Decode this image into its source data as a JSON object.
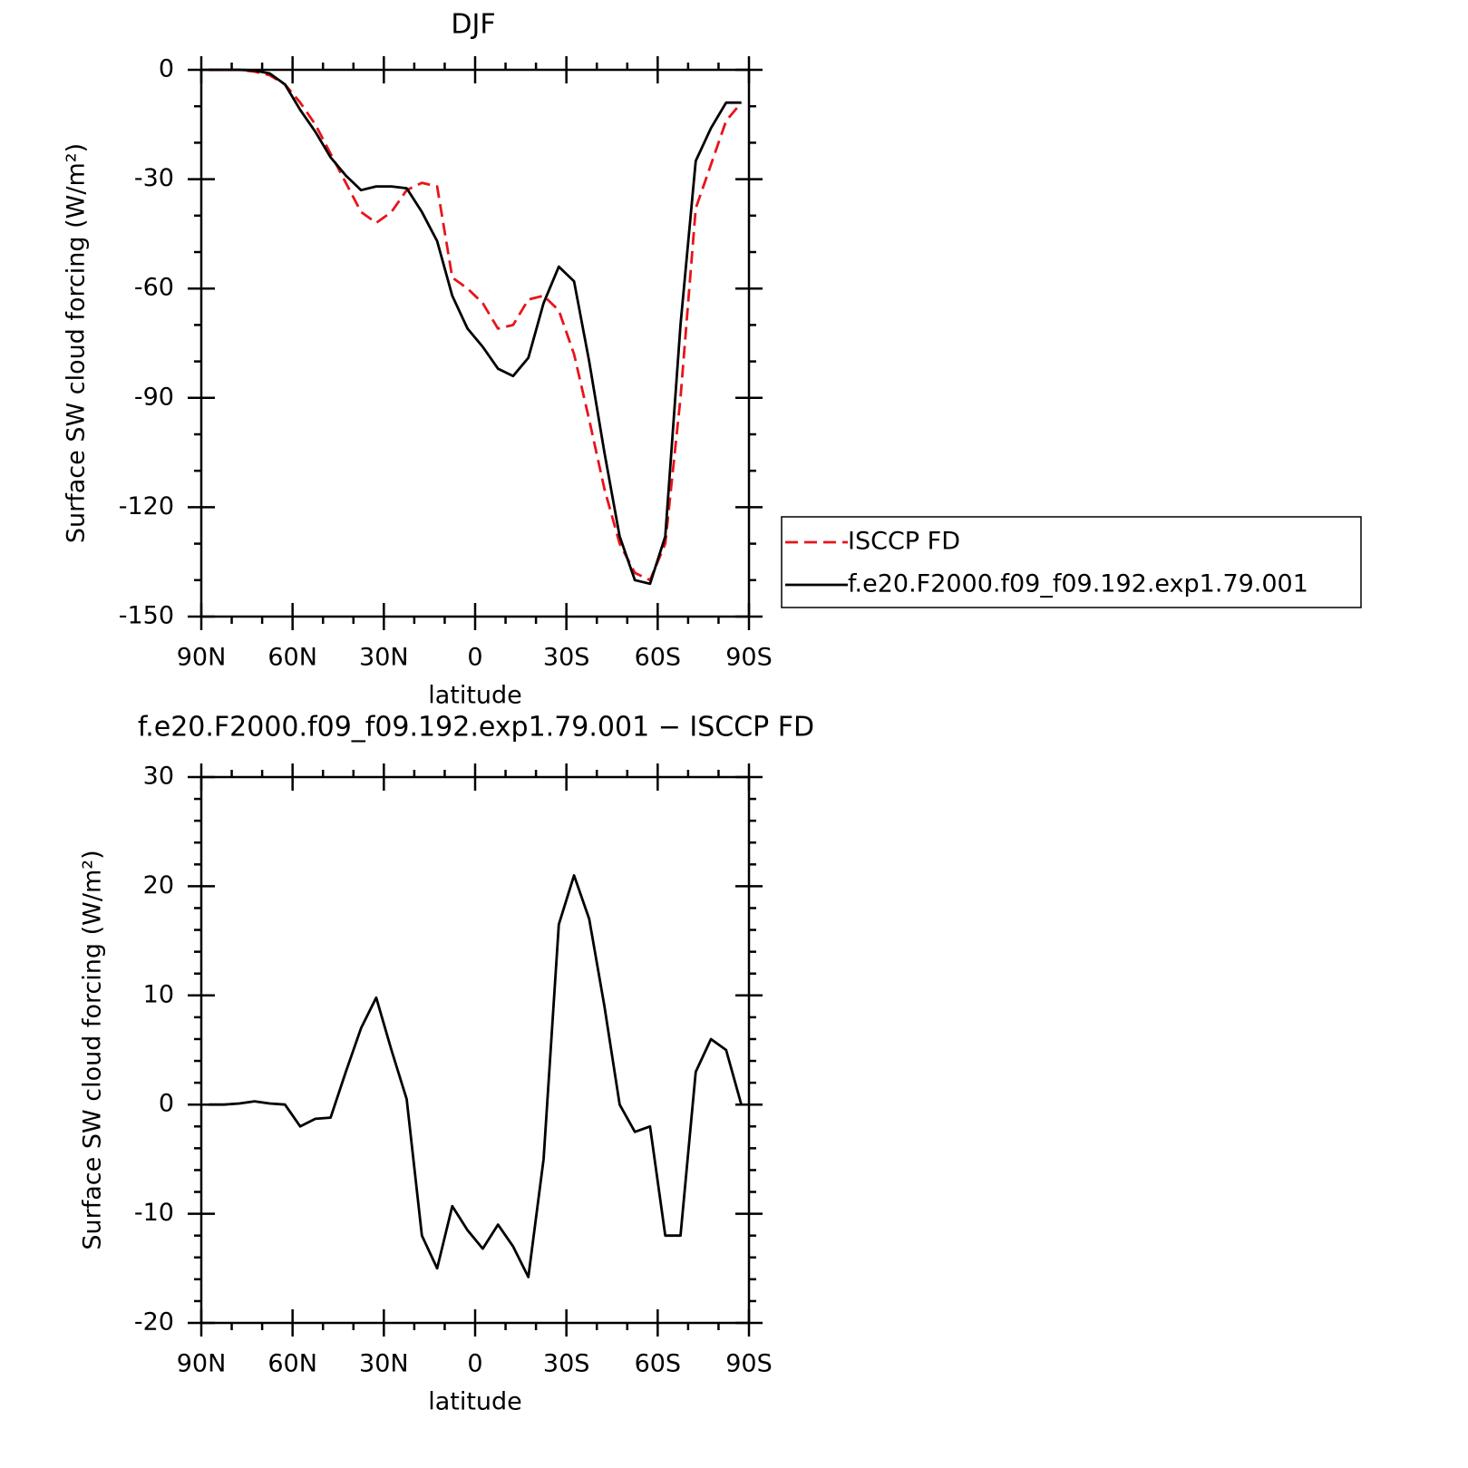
{
  "chart_data": [
    {
      "type": "line",
      "title": "DJF",
      "x_label": "latitude",
      "y_label": "Surface SW cloud forcing (W/m²)",
      "x": [
        87.5,
        82.5,
        77.5,
        72.5,
        67.5,
        62.5,
        57.5,
        52.5,
        47.5,
        42.5,
        37.5,
        32.5,
        27.5,
        22.5,
        17.5,
        12.5,
        7.5,
        2.5,
        -2.5,
        -7.5,
        -12.5,
        -17.5,
        -22.5,
        -27.5,
        -32.5,
        -37.5,
        -42.5,
        -47.5,
        -52.5,
        -57.5,
        -62.5,
        -67.5,
        -72.5,
        -77.5,
        -82.5,
        -87.5
      ],
      "xlim": [
        90,
        -90
      ],
      "xticks": [
        {
          "value": 90,
          "label": "90N"
        },
        {
          "value": 60,
          "label": "60N"
        },
        {
          "value": 30,
          "label": "30N"
        },
        0,
        {
          "value": -30,
          "label": "30S"
        },
        {
          "value": -60,
          "label": "60S"
        },
        {
          "value": -90,
          "label": "90S"
        }
      ],
      "ylim": [
        -150,
        0
      ],
      "yticks": [
        0,
        -30,
        -60,
        -90,
        -120,
        -150
      ],
      "legend": "right",
      "series": [
        {
          "name": "ISCCP FD",
          "color": "#e8141c",
          "line_style": "dashed",
          "values": [
            0,
            0,
            0,
            -0.5,
            -1.5,
            -4,
            -9,
            -15,
            -23,
            -31,
            -39,
            -42,
            -39,
            -33,
            -31,
            -32,
            -57,
            -60,
            -64,
            -71,
            -70,
            -63,
            -62,
            -66,
            -78,
            -96,
            -115,
            -130,
            -138,
            -140,
            -130,
            -90,
            -38,
            -26,
            -14,
            -9
          ]
        },
        {
          "name": "f.e20.F2000.f09_f09.192.exp1.79.001",
          "color": "#000000",
          "line_style": "solid",
          "values": [
            0,
            0,
            0,
            -0.2,
            -1,
            -4,
            -11,
            -17,
            -24,
            -29,
            -33,
            -32,
            -32,
            -32.5,
            -39,
            -47,
            -62,
            -71,
            -76,
            -82,
            -84,
            -79,
            -64,
            -54,
            -58,
            -80,
            -105,
            -128,
            -140,
            -141,
            -128,
            -70,
            -25,
            -16,
            -9,
            -9
          ]
        }
      ]
    },
    {
      "type": "line",
      "title": "f.e20.F2000.f09_f09.192.exp1.79.001 − ISCCP FD",
      "x_label": "latitude",
      "y_label": "Surface SW cloud forcing (W/m²)",
      "x": [
        87.5,
        82.5,
        77.5,
        72.5,
        67.5,
        62.5,
        57.5,
        52.5,
        47.5,
        42.5,
        37.5,
        32.5,
        27.5,
        22.5,
        17.5,
        12.5,
        7.5,
        2.5,
        -2.5,
        -7.5,
        -12.5,
        -17.5,
        -22.5,
        -27.5,
        -32.5,
        -37.5,
        -42.5,
        -47.5,
        -52.5,
        -57.5,
        -62.5,
        -67.5,
        -72.5,
        -77.5,
        -82.5,
        -87.5
      ],
      "xlim": [
        90,
        -90
      ],
      "xticks": [
        {
          "value": 90,
          "label": "90N"
        },
        {
          "value": 60,
          "label": "60N"
        },
        {
          "value": 30,
          "label": "30N"
        },
        0,
        {
          "value": -30,
          "label": "30S"
        },
        {
          "value": -60,
          "label": "60S"
        },
        {
          "value": -90,
          "label": "90S"
        }
      ],
      "ylim": [
        -20,
        30
      ],
      "yticks": [
        30,
        20,
        10,
        0,
        -10,
        -20
      ],
      "color": "#000000",
      "values": [
        0,
        0,
        0.1,
        0.3,
        0.1,
        0,
        -2,
        -1.3,
        -1.2,
        3,
        7,
        9.8,
        5,
        0.5,
        -12,
        -15,
        -9.3,
        -11.5,
        -13.2,
        -11,
        -13,
        -15.8,
        -5,
        16.5,
        21,
        17,
        9,
        0,
        -2.5,
        -2,
        -12,
        -12,
        3,
        6,
        5,
        0
      ]
    }
  ]
}
